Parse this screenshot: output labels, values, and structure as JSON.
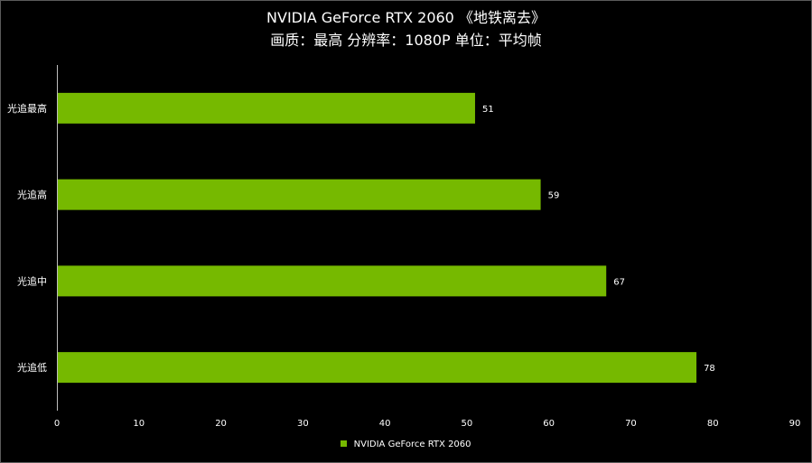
{
  "chart_data": {
    "type": "bar",
    "orientation": "horizontal",
    "title": "NVIDIA GeForce RTX 2060 《地铁离去》",
    "subtitle": "画质：最高 分辨率：1080P 单位：平均帧",
    "categories": [
      "光追最高",
      "光追高",
      "光追中",
      "光追低"
    ],
    "series": [
      {
        "name": "NVIDIA GeForce RTX 2060",
        "values": [
          51,
          59,
          67,
          78
        ]
      }
    ],
    "xlim": [
      0,
      90
    ],
    "xticks": [
      0,
      10,
      20,
      30,
      40,
      50,
      60,
      70,
      80,
      90
    ],
    "xlabel": "",
    "ylabel": "",
    "grid": false,
    "legend": "bottom-center",
    "colors": {
      "bar": "#76b900",
      "axis": "#bfbfbf",
      "text": "#ffffff",
      "background": "#000000"
    }
  }
}
